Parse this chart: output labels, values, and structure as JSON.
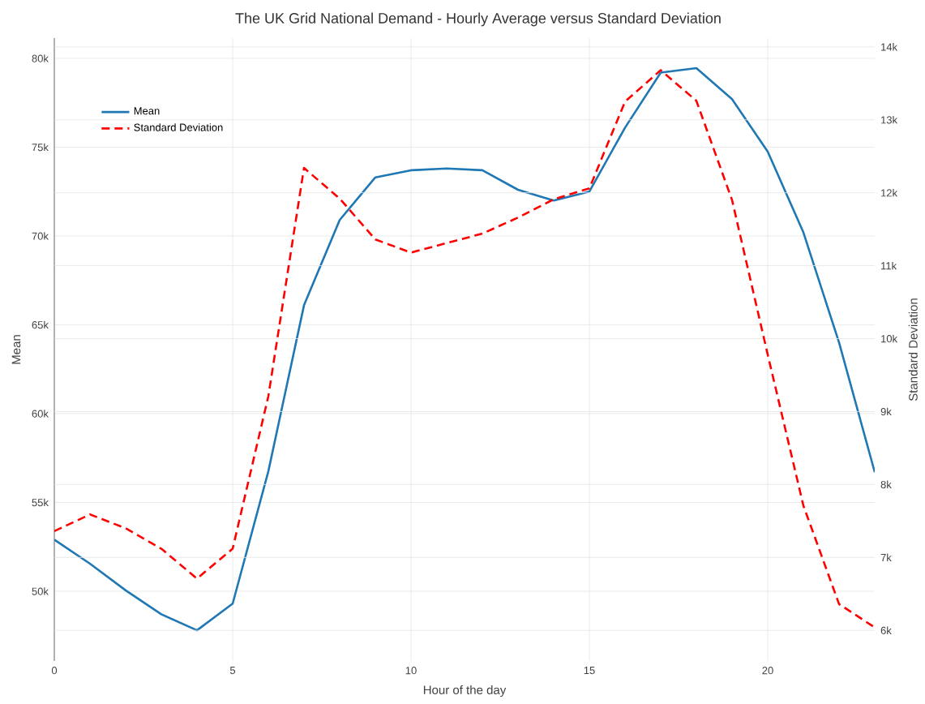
{
  "chart_data": {
    "type": "line",
    "title": "The UK Grid National Demand - Hourly Average versus Standard Deviation",
    "xlabel": "Hour of the day",
    "ylabel": "Mean",
    "y2label": "Standard Deviation",
    "x": [
      0,
      1,
      2,
      3,
      4,
      5,
      6,
      7,
      8,
      9,
      10,
      11,
      12,
      13,
      14,
      15,
      16,
      17,
      18,
      19,
      20,
      21,
      22,
      23
    ],
    "series": [
      {
        "name": "Mean",
        "color": "#1f77b4",
        "values": [
          52900,
          51550,
          50050,
          48700,
          47800,
          49300,
          56750,
          66100,
          70900,
          73300,
          73700,
          73800,
          73700,
          72600,
          72000,
          72500,
          76100,
          79200,
          79450,
          77700,
          74750,
          70200,
          64000,
          56700
        ]
      },
      {
        "name": "Standard Deviation",
        "color": "#ff0000",
        "line_style": "dashed",
        "axis": "y2",
        "values": [
          7360,
          7590,
          7400,
          7120,
          6710,
          7120,
          9210,
          12340,
          11920,
          11360,
          11180,
          11310,
          11440,
          11660,
          11910,
          12060,
          13250,
          13680,
          13260,
          11900,
          9780,
          7710,
          6360,
          6040
        ]
      }
    ],
    "xlim": [
      0,
      23
    ],
    "xticks": [
      0,
      5,
      10,
      15,
      20
    ],
    "ylim": [
      46070,
      81140
    ],
    "yticks": [
      {
        "value": 50000,
        "label": "50k"
      },
      {
        "value": 55000,
        "label": "55k"
      },
      {
        "value": 60000,
        "label": "60k"
      },
      {
        "value": 65000,
        "label": "65k"
      },
      {
        "value": 70000,
        "label": "70k"
      },
      {
        "value": 75000,
        "label": "75k"
      },
      {
        "value": 80000,
        "label": "80k"
      }
    ],
    "y2lim": [
      5580,
      14120
    ],
    "y2ticks": [
      {
        "value": 6000,
        "label": "6k"
      },
      {
        "value": 7000,
        "label": "7k"
      },
      {
        "value": 8000,
        "label": "8k"
      },
      {
        "value": 9000,
        "label": "9k"
      },
      {
        "value": 10000,
        "label": "10k"
      },
      {
        "value": 11000,
        "label": "11k"
      },
      {
        "value": 12000,
        "label": "12k"
      },
      {
        "value": 13000,
        "label": "13k"
      },
      {
        "value": 14000,
        "label": "14k"
      }
    ],
    "grid": true,
    "legend": "top left"
  }
}
